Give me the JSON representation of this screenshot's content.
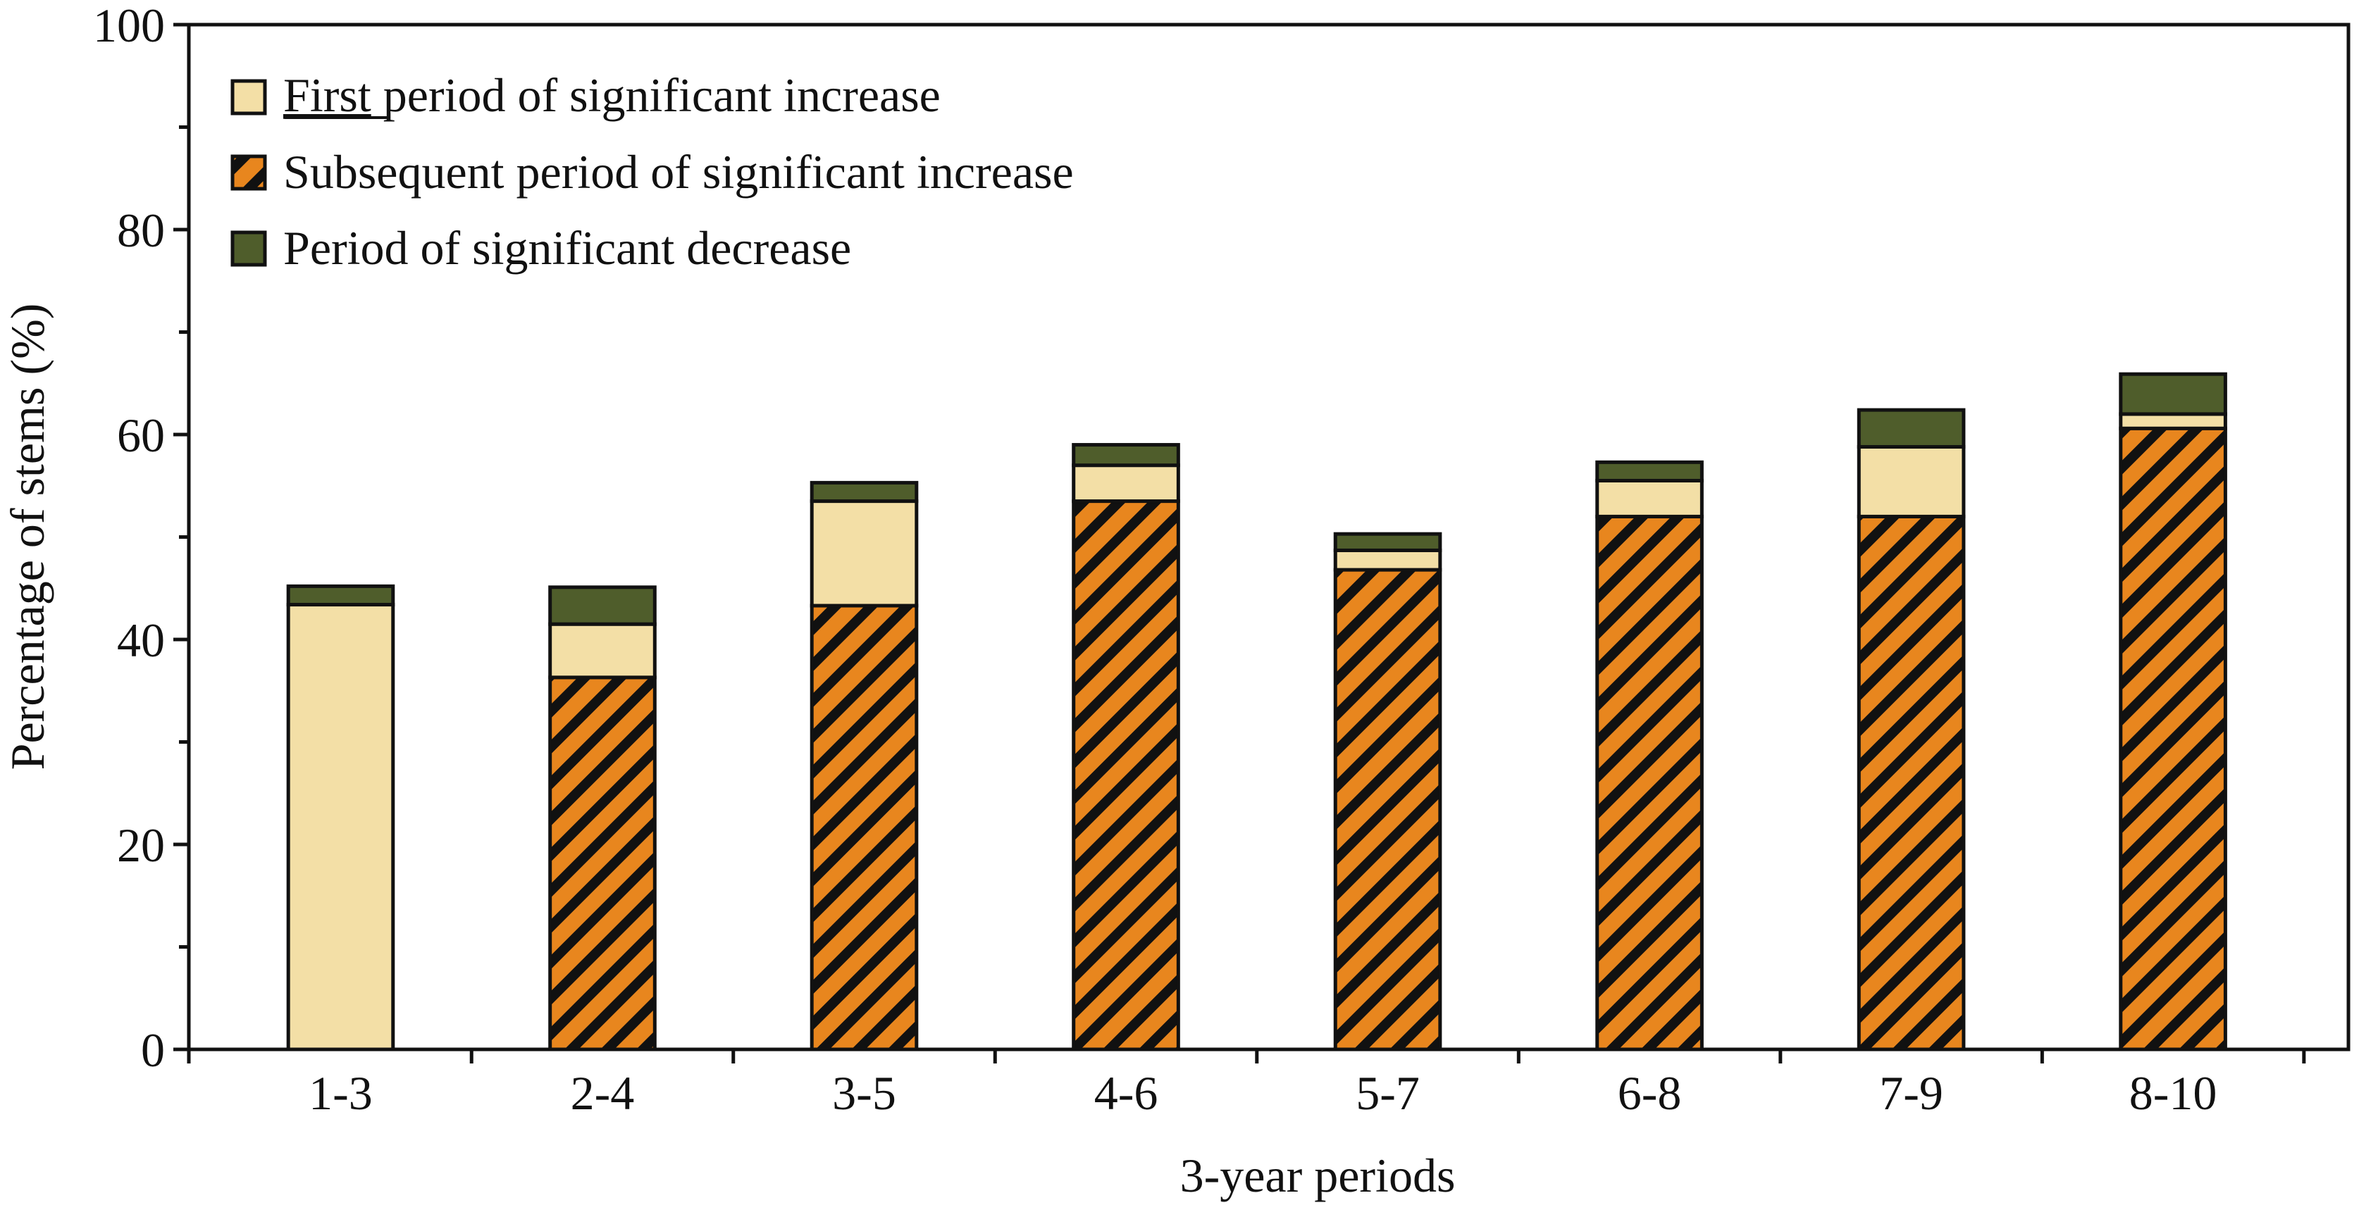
{
  "chart_data": {
    "type": "bar",
    "stacked": true,
    "title": "",
    "xlabel": "3-year periods",
    "ylabel": "Percentage of stems (%)",
    "ylim": [
      0,
      100
    ],
    "yticks": [
      0,
      20,
      40,
      60,
      80,
      100
    ],
    "categories": [
      "1-3",
      "2-4",
      "3-5",
      "4-6",
      "5-7",
      "6-8",
      "7-9",
      "8-10"
    ],
    "series": [
      {
        "name": "Subsequent period of significant increase",
        "legend_label": "Subsequent period of significant increase",
        "color": "#e8861e",
        "hatch": true,
        "values": [
          0,
          36.3,
          43.3,
          53.5,
          46.8,
          52.0,
          52.0,
          60.6
        ]
      },
      {
        "name": "First period of significant increase",
        "legend_first": "First",
        "legend_rest": " period of significant increase",
        "color": "#f3dfa6",
        "hatch": false,
        "values": [
          43.4,
          5.2,
          10.2,
          3.5,
          1.9,
          3.5,
          6.8,
          1.4
        ]
      },
      {
        "name": "Period of significant decrease",
        "legend_label": "Period of significant decrease",
        "color": "#4f5d2b",
        "hatch": false,
        "values": [
          1.8,
          3.6,
          1.8,
          2.0,
          1.6,
          1.8,
          3.6,
          3.9
        ]
      }
    ],
    "legend_position": "top-left",
    "grid": false
  }
}
